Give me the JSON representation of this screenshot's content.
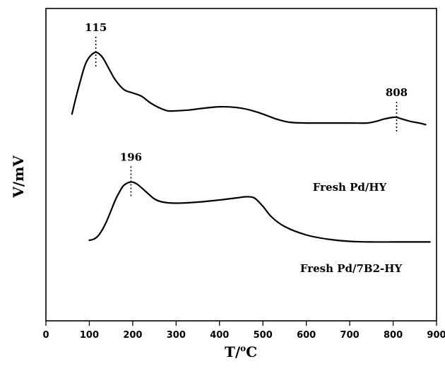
{
  "chart_data": {
    "type": "line",
    "xlabel": "T/",
    "xlabel_sup": "o",
    "xlabel_unit": "C",
    "ylabel": "V/mV",
    "xlim": [
      0,
      900
    ],
    "xticks": [
      0,
      100,
      200,
      300,
      400,
      500,
      600,
      700,
      800,
      900
    ],
    "yticks_shown": false,
    "grid": false,
    "series": [
      {
        "name": "Fresh Pd/HY",
        "x": [
          60,
          70,
          80,
          90,
          100,
          115,
          130,
          145,
          160,
          180,
          200,
          220,
          240,
          260,
          280,
          300,
          330,
          360,
          400,
          440,
          470,
          500,
          530,
          560,
          600,
          650,
          700,
          740,
          760,
          780,
          800,
          808,
          820,
          840,
          860,
          875
        ],
        "y": [
          0.32,
          0.43,
          0.53,
          0.62,
          0.67,
          0.7,
          0.67,
          0.6,
          0.53,
          0.47,
          0.45,
          0.43,
          0.39,
          0.36,
          0.34,
          0.34,
          0.345,
          0.355,
          0.365,
          0.36,
          0.345,
          0.32,
          0.29,
          0.27,
          0.265,
          0.265,
          0.265,
          0.265,
          0.275,
          0.29,
          0.3,
          0.3,
          0.29,
          0.275,
          0.265,
          0.255
        ]
      },
      {
        "name": "Fresh Pd/7B2-HY",
        "x": [
          100,
          110,
          120,
          130,
          140,
          150,
          160,
          170,
          180,
          196,
          210,
          230,
          250,
          270,
          300,
          350,
          400,
          440,
          460,
          480,
          500,
          520,
          550,
          600,
          650,
          700,
          750,
          800,
          850,
          885
        ],
        "y": [
          0.02,
          0.025,
          0.04,
          0.07,
          0.11,
          0.16,
          0.21,
          0.25,
          0.28,
          0.295,
          0.285,
          0.25,
          0.215,
          0.2,
          0.195,
          0.2,
          0.21,
          0.22,
          0.225,
          0.22,
          0.18,
          0.13,
          0.085,
          0.045,
          0.025,
          0.015,
          0.012,
          0.012,
          0.012,
          0.012
        ]
      }
    ],
    "annotations": [
      {
        "label": "115",
        "x": 115,
        "series": 0
      },
      {
        "label": "808",
        "x": 808,
        "series": 0
      },
      {
        "label": "196",
        "x": 196,
        "series": 1
      }
    ],
    "series_label_positions": [
      "right, below curve",
      "right, below curve"
    ]
  }
}
